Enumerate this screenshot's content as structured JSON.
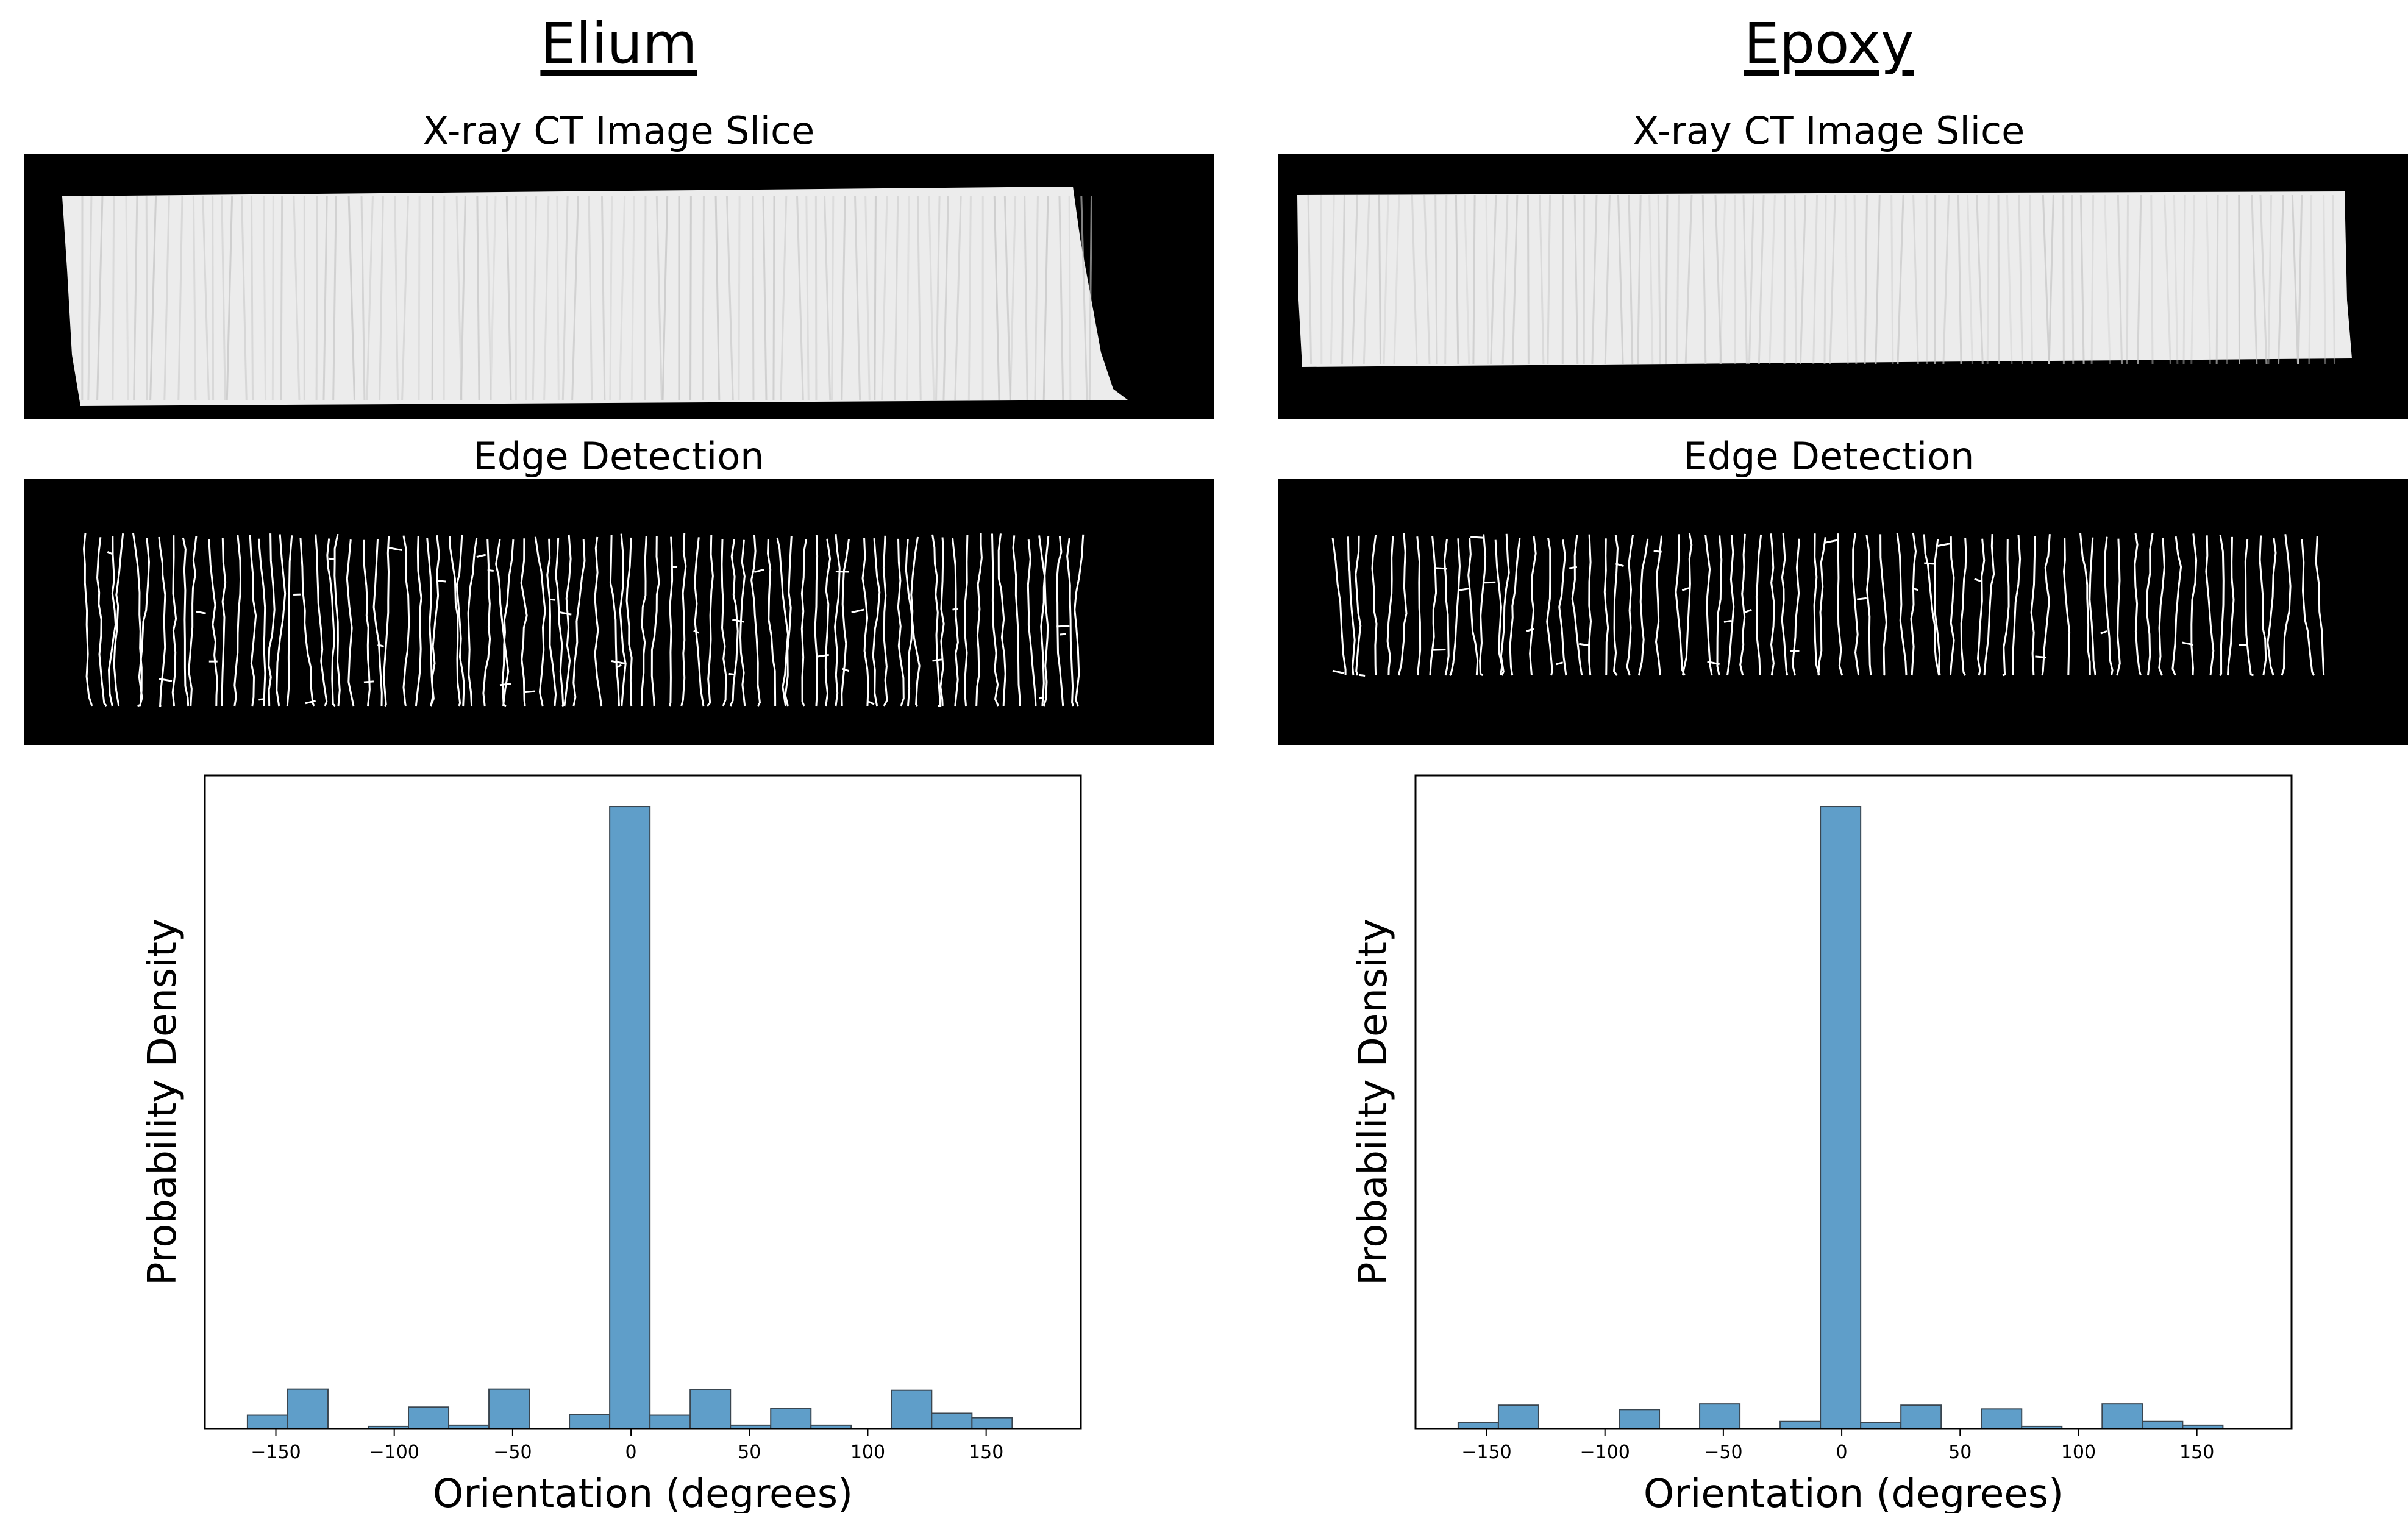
{
  "panels": [
    {
      "title": "Elium",
      "ct_title": "X-ray CT Image Slice",
      "edge_title": "Edge Detection"
    },
    {
      "title": "Epoxy",
      "ct_title": "X-ray CT Image Slice",
      "edge_title": "Edge Detection"
    }
  ],
  "colors": {
    "bar_fill": "#5f9ec9",
    "bar_edge": "#3a4650",
    "image_bg": "#000000",
    "specimen": "#ececec"
  },
  "chart_data": [
    {
      "type": "bar",
      "title": "",
      "xlabel": "Orientation (degrees)",
      "ylabel": "Probability Density",
      "xlim": [
        -180,
        190
      ],
      "ylim": [
        0,
        1.05
      ],
      "xticks": [
        -150,
        -100,
        -50,
        0,
        50,
        100,
        150
      ],
      "xtick_labels": [
        "−150",
        "−100",
        "−50",
        "0",
        "50",
        "100",
        "150"
      ],
      "y_ticks_shown": false,
      "bin_width": 17,
      "bin_starts": [
        -162,
        -145,
        -128,
        -111,
        -94,
        -77,
        -60,
        -43,
        -26,
        -9,
        8,
        25,
        42,
        59,
        76,
        93,
        110,
        127,
        144,
        161
      ],
      "values": [
        0.022,
        0.064,
        0.0,
        0.004,
        0.035,
        0.006,
        0.064,
        0.0,
        0.023,
        1.0,
        0.022,
        0.063,
        0.006,
        0.033,
        0.006,
        0.0,
        0.062,
        0.025,
        0.018,
        0.0
      ]
    },
    {
      "type": "bar",
      "title": "",
      "xlabel": "Orientation (degrees)",
      "ylabel": "Probability Density",
      "xlim": [
        -180,
        190
      ],
      "ylim": [
        0,
        1.05
      ],
      "xticks": [
        -150,
        -100,
        -50,
        0,
        50,
        100,
        150
      ],
      "xtick_labels": [
        "−150",
        "−100",
        "−50",
        "0",
        "50",
        "100",
        "150"
      ],
      "y_ticks_shown": false,
      "bin_width": 17,
      "bin_starts": [
        -162,
        -145,
        -128,
        -111,
        -94,
        -77,
        -60,
        -43,
        -26,
        -9,
        8,
        25,
        42,
        59,
        76,
        93,
        110,
        127,
        144,
        161
      ],
      "values": [
        0.01,
        0.038,
        0.0,
        0.0,
        0.031,
        0.0,
        0.04,
        0.0,
        0.012,
        1.0,
        0.01,
        0.038,
        0.0,
        0.032,
        0.004,
        0.0,
        0.04,
        0.012,
        0.006,
        0.0
      ]
    }
  ]
}
